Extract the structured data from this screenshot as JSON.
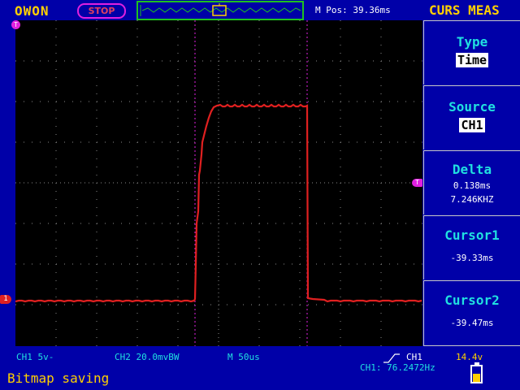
{
  "header": {
    "brand": "OWON",
    "run_status": "STOP",
    "m_pos": "M Pos: 39.36ms",
    "menu_title": "CURS MEAS",
    "trigger_marker": "T"
  },
  "menu": {
    "items": [
      {
        "label": "Type",
        "value": "Time"
      },
      {
        "label": "Source",
        "value": "CH1"
      },
      {
        "label": "Delta",
        "value": "0.138ms",
        "value2": "7.246KHZ"
      },
      {
        "label": "Cursor1",
        "value": "-39.33ms"
      },
      {
        "label": "Cursor2",
        "value": "-39.47ms"
      }
    ]
  },
  "status": {
    "ch1": "CH1  5v-",
    "ch2": "CH2 20.0mvBW",
    "timebase": "M  50us",
    "trig_channel": "CH1",
    "trig_level": "14.4v",
    "freq": "CH1: 76.2472Hz",
    "message": "Bitmap saving"
  },
  "markers": {
    "ch1": "1",
    "cursor_level": "T"
  },
  "colors": {
    "background": "#0000a8",
    "trace": "#e02020",
    "cursor": "#e020e0",
    "accent": "#ffd000",
    "label": "#20e0e0"
  }
}
